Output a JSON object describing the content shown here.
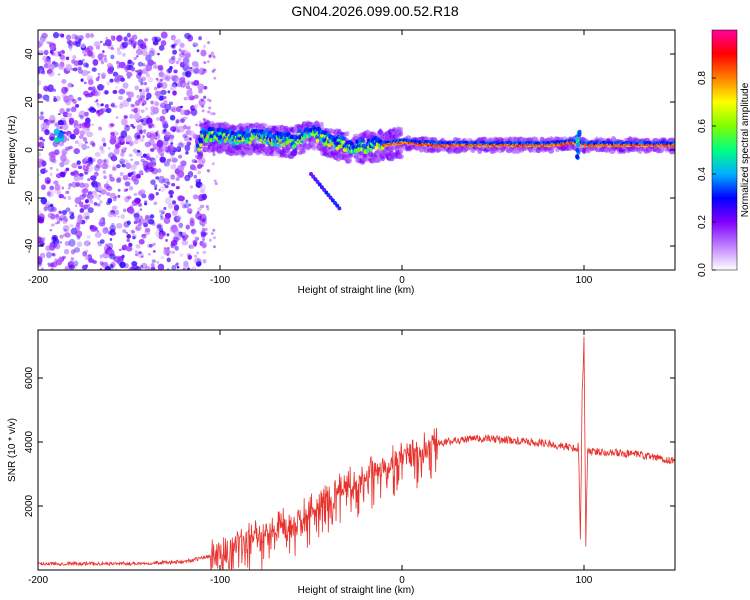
{
  "title": "GN04.2026.099.00.52.R18",
  "chart_data": [
    {
      "type": "heatmap",
      "name": "spectrogram",
      "xlabel": "Height of straight line (km)",
      "ylabel": "Frequency (Hz)",
      "xlim": [
        -200,
        150
      ],
      "ylim": [
        -50,
        50
      ],
      "xticks": [
        -200,
        -100,
        0,
        100
      ],
      "yticks": [
        -40,
        -20,
        0,
        20,
        40
      ],
      "colorbar": {
        "label": "Normalized spectral amplitude",
        "range": [
          0,
          1
        ],
        "ticks": [
          "0.0",
          "0.2",
          "0.4",
          "0.6",
          "0.8"
        ],
        "colormap": [
          "#ffffff",
          "#c080ff",
          "#8000ff",
          "#0000ff",
          "#00b0ff",
          "#00ff80",
          "#80ff00",
          "#ffff00",
          "#ff8000",
          "#ff0000",
          "#ff00a0"
        ]
      },
      "ridge": [
        {
          "x": -110,
          "y": 6
        },
        {
          "x": -100,
          "y": 5
        },
        {
          "x": -90,
          "y": 4
        },
        {
          "x": -80,
          "y": 5
        },
        {
          "x": -70,
          "y": 4
        },
        {
          "x": -60,
          "y": 3
        },
        {
          "x": -50,
          "y": 7
        },
        {
          "x": -40,
          "y": 3
        },
        {
          "x": -30,
          "y": 1
        },
        {
          "x": -20,
          "y": 1
        },
        {
          "x": -10,
          "y": 2
        },
        {
          "x": 0,
          "y": 3
        },
        {
          "x": 20,
          "y": 2
        },
        {
          "x": 50,
          "y": 2
        },
        {
          "x": 80,
          "y": 2
        },
        {
          "x": 95,
          "y": 3
        },
        {
          "x": 100,
          "y": 2
        },
        {
          "x": 150,
          "y": 2
        }
      ]
    },
    {
      "type": "line",
      "name": "snr",
      "xlabel": "Height of straight line (km)",
      "ylabel": "SNR (10 * v/v)",
      "xlim": [
        -200,
        150
      ],
      "ylim": [
        0,
        7500
      ],
      "xticks": [
        -200,
        -100,
        0,
        100
      ],
      "yticks": [
        2000,
        4000,
        6000
      ],
      "color": "#e8322d",
      "envelope": [
        {
          "x": -200,
          "y": 200
        },
        {
          "x": -150,
          "y": 200
        },
        {
          "x": -120,
          "y": 250
        },
        {
          "x": -100,
          "y": 500
        },
        {
          "x": -90,
          "y": 900
        },
        {
          "x": -80,
          "y": 1100
        },
        {
          "x": -70,
          "y": 1300
        },
        {
          "x": -60,
          "y": 1500
        },
        {
          "x": -50,
          "y": 1900
        },
        {
          "x": -40,
          "y": 2300
        },
        {
          "x": -30,
          "y": 2600
        },
        {
          "x": -20,
          "y": 3000
        },
        {
          "x": -10,
          "y": 3200
        },
        {
          "x": 0,
          "y": 3500
        },
        {
          "x": 10,
          "y": 3800
        },
        {
          "x": 20,
          "y": 3950
        },
        {
          "x": 30,
          "y": 4050
        },
        {
          "x": 40,
          "y": 4100
        },
        {
          "x": 50,
          "y": 4100
        },
        {
          "x": 60,
          "y": 4050
        },
        {
          "x": 70,
          "y": 4000
        },
        {
          "x": 80,
          "y": 3950
        },
        {
          "x": 90,
          "y": 3850
        },
        {
          "x": 97,
          "y": 3800
        },
        {
          "x": 98,
          "y": 1000
        },
        {
          "x": 99,
          "y": 5500
        },
        {
          "x": 100,
          "y": 7200
        },
        {
          "x": 101,
          "y": 900
        },
        {
          "x": 102,
          "y": 3700
        },
        {
          "x": 110,
          "y": 3700
        },
        {
          "x": 130,
          "y": 3600
        },
        {
          "x": 150,
          "y": 3400
        }
      ]
    }
  ]
}
